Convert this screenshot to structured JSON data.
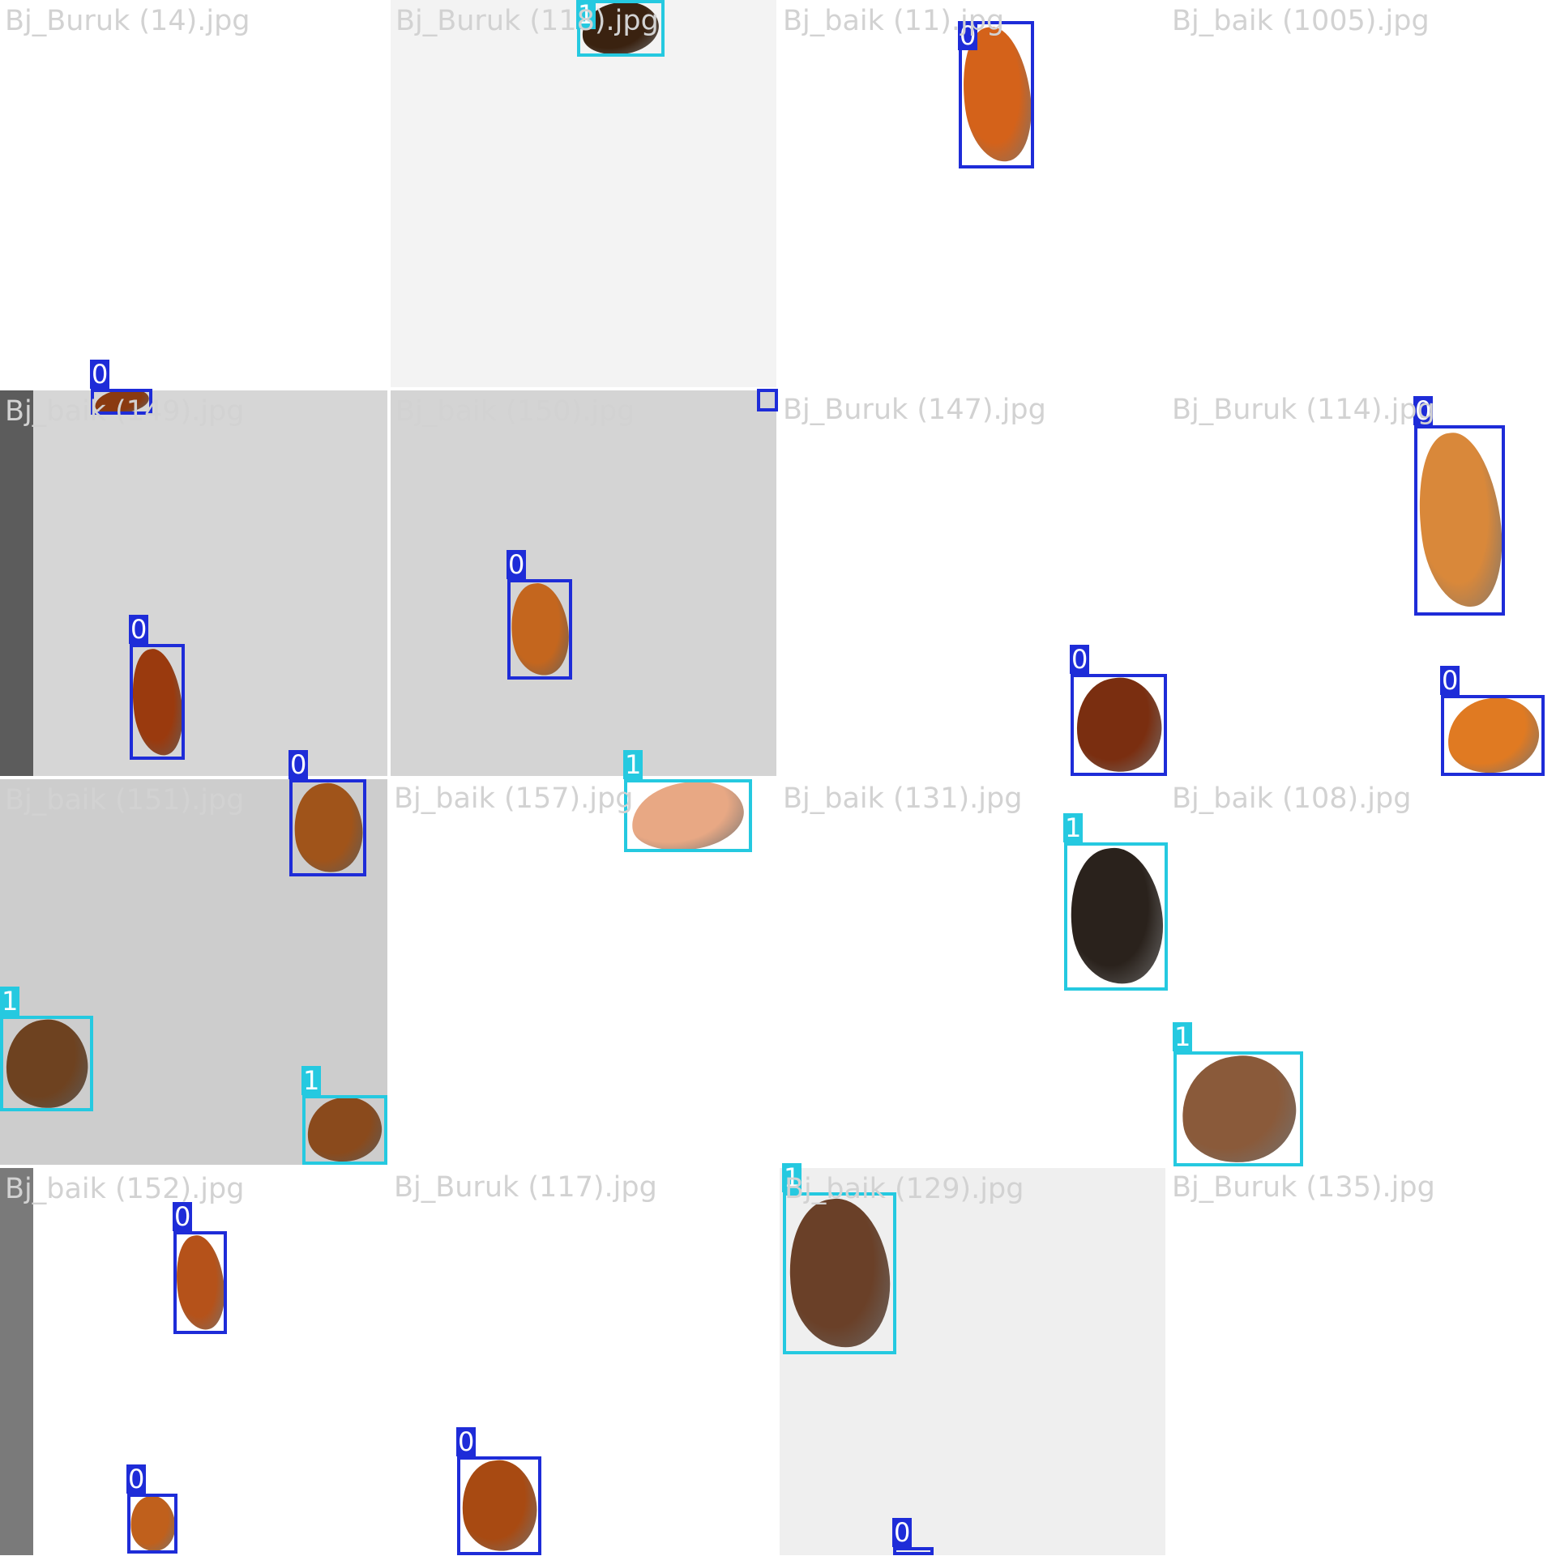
{
  "mosaic": {
    "class_colors": {
      "0": "#1e2cd8",
      "1": "#25c9e0"
    },
    "tiles": [
      {
        "name": "Bj_Buruk (14).jpg",
        "background": "#ffffff",
        "detections": [
          {
            "label": "0",
            "bean": "#8a3a10"
          }
        ]
      },
      {
        "name": "Bj_Buruk (118).jpg",
        "background": "#f3f3f3",
        "detections": [
          {
            "label": "1",
            "bean": "#3a2210"
          }
        ]
      },
      {
        "name": "Bj_baik (11).jpg",
        "background": "#ffffff",
        "detections": [
          {
            "label": "0",
            "bean": "#d4621a"
          }
        ]
      },
      {
        "name": "Bj_baik (1005).jpg",
        "background": "#ffffff",
        "detections": []
      },
      {
        "name": "Bj_baik (149).jpg",
        "background": "#d6d6d6",
        "strip": "#5c5c5c",
        "detections": [
          {
            "label": "0",
            "bean": "#9a3a0e"
          }
        ]
      },
      {
        "name": "Bj_baik (150).jpg",
        "background": "#d4d4d4",
        "detections": [
          {
            "label": "0",
            "bean": "#c4661e"
          }
        ]
      },
      {
        "name": "Bj_Buruk (147).jpg",
        "background": "#ffffff",
        "detections": [
          {
            "label": "0",
            "bean": "#7a2e10"
          }
        ]
      },
      {
        "name": "Bj_Buruk (114).jpg",
        "background": "#ffffff",
        "detections": [
          {
            "label": "0",
            "bean": "#d9883a"
          },
          {
            "label": "0",
            "bean": "#e07a22"
          }
        ]
      },
      {
        "name": "Bj_baik (151).jpg",
        "background": "#cdcdcd",
        "detections": [
          {
            "label": "0",
            "bean": "#a0541a"
          },
          {
            "label": "1",
            "bean": "#6e4220"
          },
          {
            "label": "1",
            "bean": "#8a4a1c"
          }
        ]
      },
      {
        "name": "Bj_baik (157).jpg",
        "background": "#ffffff",
        "detections": [
          {
            "label": "1",
            "bean": "#e8a884"
          }
        ]
      },
      {
        "name": "Bj_baik (131).jpg",
        "background": "#ffffff",
        "detections": [
          {
            "label": "1",
            "bean": "#2a221c"
          }
        ]
      },
      {
        "name": "Bj_baik (108).jpg",
        "background": "#ffffff",
        "detections": [
          {
            "label": "1",
            "bean": "#8a5a3a"
          }
        ]
      },
      {
        "name": "Bj_baik (152).jpg",
        "background": "#ffffff",
        "strip": "#7a7a7a",
        "detections": [
          {
            "label": "0",
            "bean": "#b5521a"
          },
          {
            "label": "0",
            "bean": "#c0601c"
          }
        ]
      },
      {
        "name": "Bj_Buruk (117).jpg",
        "background": "#ffffff",
        "detections": [
          {
            "label": "0",
            "bean": "#a84a12"
          }
        ]
      },
      {
        "name": "Bj_baik (129).jpg",
        "background": "#efefef",
        "detections": [
          {
            "label": "1",
            "bean": "#6a4028"
          },
          {
            "label": "0",
            "bean": "#c0601c"
          }
        ]
      },
      {
        "name": "Bj_Buruk (135).jpg",
        "background": "#ffffff",
        "detections": []
      }
    ]
  }
}
